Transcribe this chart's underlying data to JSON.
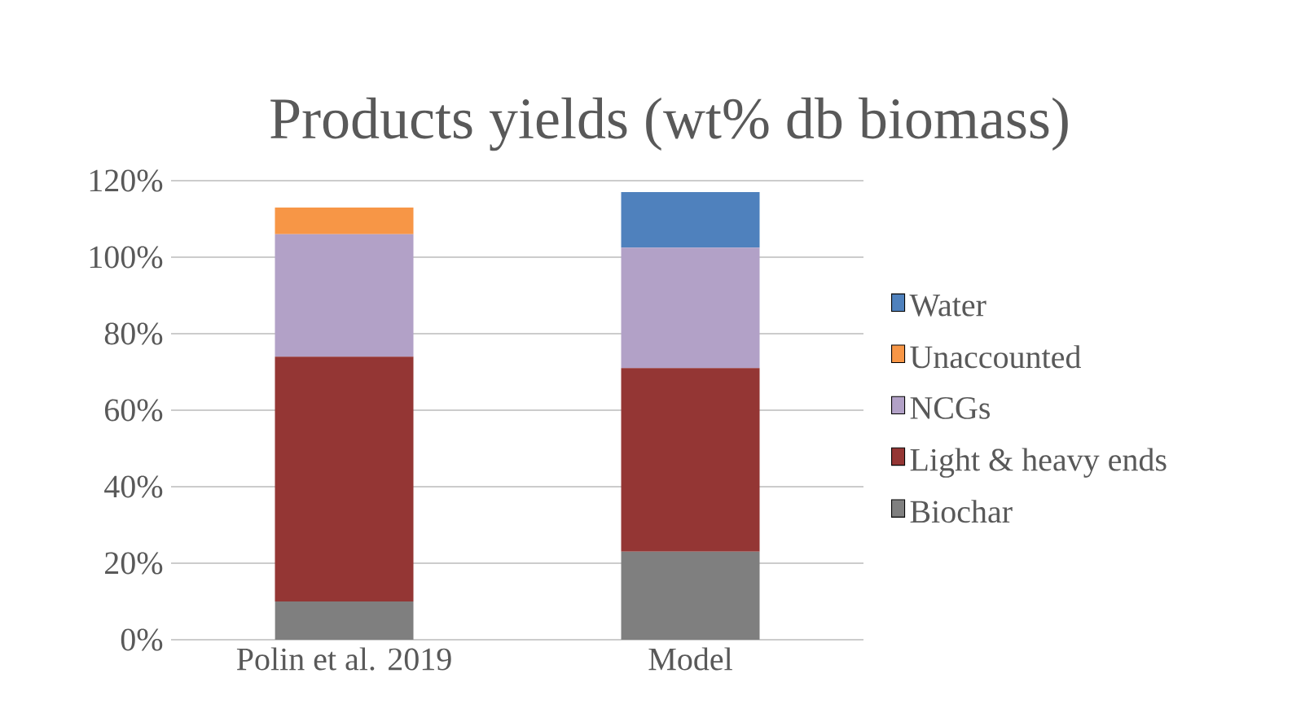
{
  "chart_data": {
    "type": "bar",
    "title": "Products yields (wt% db biomass)",
    "categories": [
      "Polin et al. 2019",
      "Model"
    ],
    "stacked": true,
    "series": [
      {
        "name": "Biochar",
        "color": "#7f7f7f",
        "values": [
          10,
          23
        ]
      },
      {
        "name": "Light & heavy ends",
        "color": "#943634",
        "values": [
          64,
          48
        ]
      },
      {
        "name": "NCGs",
        "color": "#b2a1c7",
        "values": [
          32,
          31.5
        ]
      },
      {
        "name": "Unaccounted",
        "color": "#f79646",
        "values": [
          7,
          0
        ]
      },
      {
        "name": "Water",
        "color": "#4f81bd",
        "values": [
          0,
          14.5
        ]
      }
    ],
    "ylim": [
      0,
      120
    ],
    "yticks": [
      {
        "value": 0,
        "label": "0%"
      },
      {
        "value": 20,
        "label": "20%"
      },
      {
        "value": 40,
        "label": "40%"
      },
      {
        "value": 60,
        "label": "60%"
      },
      {
        "value": 80,
        "label": "80%"
      },
      {
        "value": 100,
        "label": "100%"
      },
      {
        "value": 120,
        "label": "120%"
      }
    ],
    "grid": "y",
    "legend": "right"
  }
}
